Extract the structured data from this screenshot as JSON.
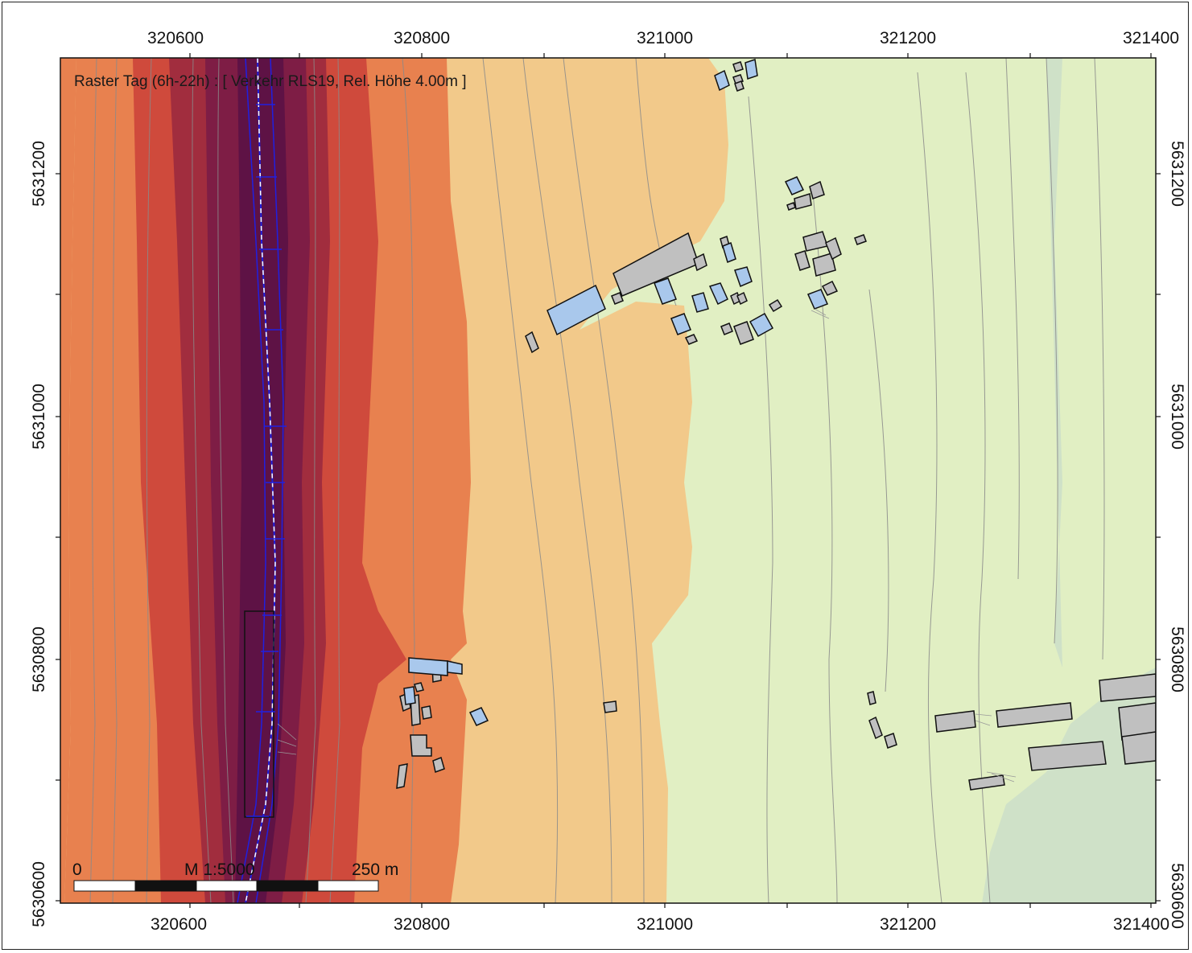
{
  "map": {
    "title": "Raster Tag (6h-22h) : [ Verkehr RLS19, Rel. Höhe  4.00m ]",
    "x_ticks": [
      "320600",
      "320800",
      "321000",
      "321200",
      "321400"
    ],
    "y_ticks": [
      "5631200",
      "5631000",
      "5630800",
      "5630600"
    ],
    "scale_bar": {
      "start": "0",
      "ratio": "M 1:5000",
      "end": "250 m"
    },
    "colors": {
      "zone_light_sand": "#f2c98a",
      "zone_orange": "#e8814f",
      "zone_red": "#cf4a3c",
      "zone_crimson": "#a12d3e",
      "zone_dark_magenta": "#7e1d45",
      "zone_pale_green": "#e1efc3",
      "zone_sage": "#cfe1c8",
      "road_axis": "#2020e0",
      "building_grey": "#c0c0c0",
      "building_blue": "#a9c8ec",
      "contour": "#8a8a8a"
    }
  }
}
